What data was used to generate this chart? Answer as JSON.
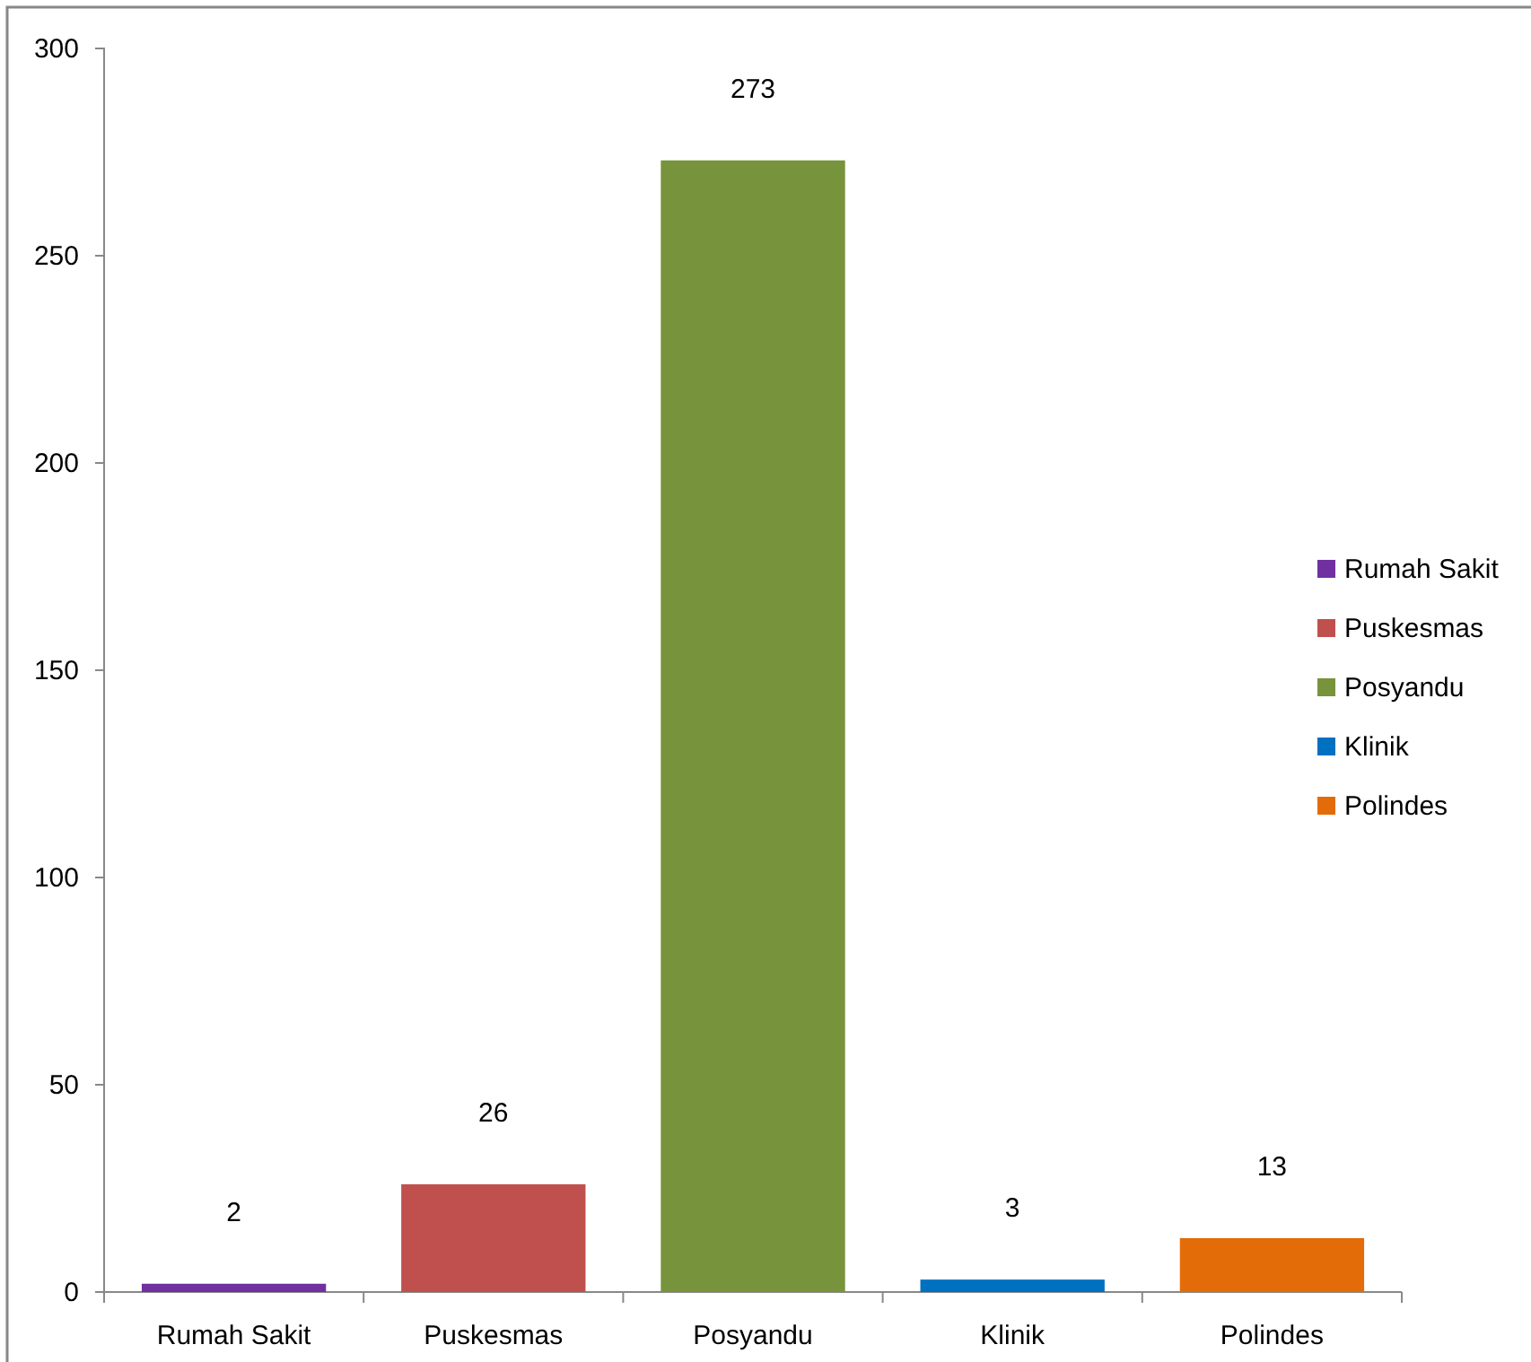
{
  "chart_data": {
    "type": "bar",
    "categories": [
      "Rumah Sakit",
      "Puskesmas",
      "Posyandu",
      "Klinik",
      "Polindes"
    ],
    "series": [
      {
        "name": "Rumah Sakit",
        "color": "#7030a0",
        "values": [
          2,
          null,
          null,
          null,
          null
        ]
      },
      {
        "name": "Puskesmas",
        "color": "#c0504d",
        "values": [
          null,
          26,
          null,
          null,
          null
        ]
      },
      {
        "name": "Posyandu",
        "color": "#77933c",
        "values": [
          null,
          null,
          273,
          null,
          null
        ]
      },
      {
        "name": "Klinik",
        "color": "#0070c0",
        "values": [
          null,
          null,
          null,
          3,
          null
        ]
      },
      {
        "name": "Polindes",
        "color": "#e36c09",
        "values": [
          null,
          null,
          null,
          null,
          13
        ]
      }
    ],
    "stacked": true,
    "ylim": [
      0,
      300
    ],
    "yticks": [
      0,
      50,
      100,
      150,
      200,
      250,
      300
    ],
    "data_labels": true,
    "legend": "right"
  }
}
